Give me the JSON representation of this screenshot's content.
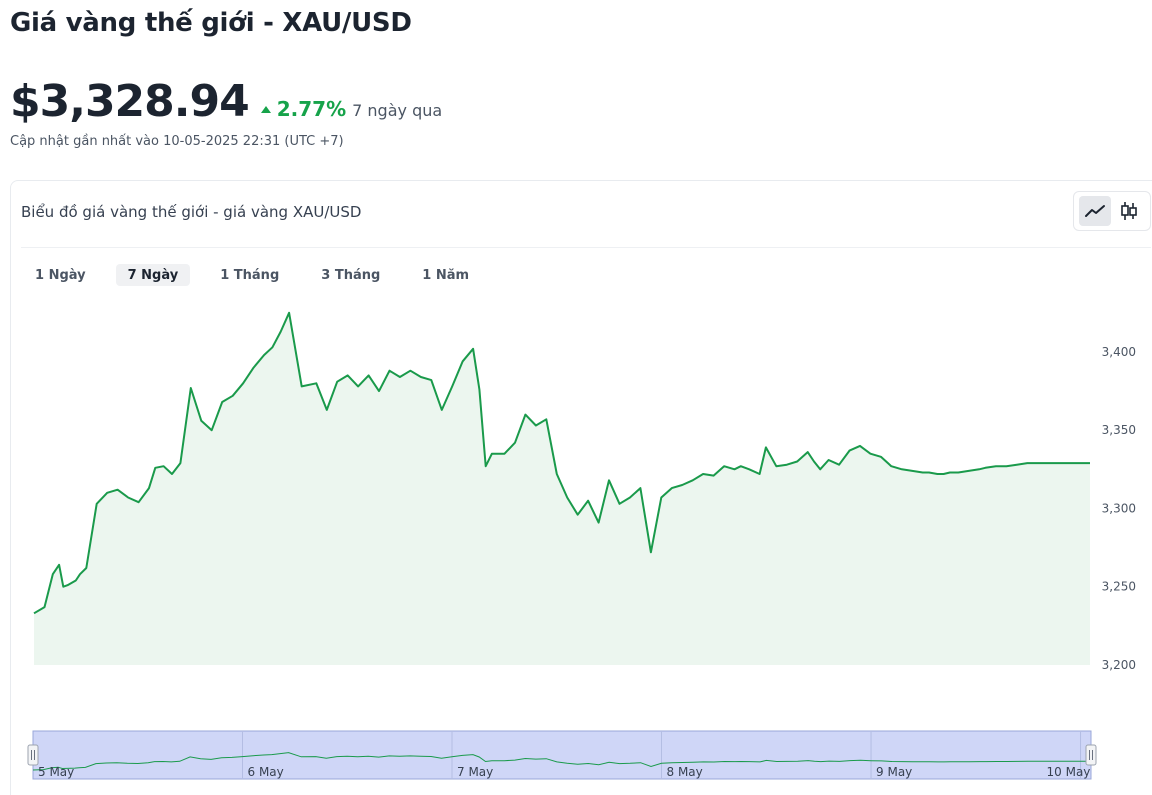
{
  "header": {
    "title": "Giá vàng thế giới - XAU/USD",
    "price": "$3,328.94",
    "change_pct": "2.77%",
    "change_period": "7 ngày qua",
    "updated": "Cập nhật gần nhất vào 10-05-2025 22:31 (UTC +7)"
  },
  "card": {
    "title": "Biểu đồ giá vàng thế giới - giá vàng XAU/USD",
    "chart_type_options": [
      "line-chart-icon",
      "candlestick-icon"
    ],
    "active_chart_type": "line-chart-icon",
    "range_tabs": [
      {
        "label": "1 Ngày",
        "active": false
      },
      {
        "label": "7 Ngày",
        "active": true
      },
      {
        "label": "1 Tháng",
        "active": false
      },
      {
        "label": "3 Tháng",
        "active": false
      },
      {
        "label": "1 Năm",
        "active": false
      }
    ]
  },
  "colors": {
    "line": "#1a9a4b",
    "area": "#ecf6ef",
    "up": "#16a34a",
    "navigator_fill": "#cfd6f7",
    "navigator_border": "#9aa7d8"
  },
  "chart_data": {
    "type": "line",
    "ylim": [
      3200,
      3430
    ],
    "yticks": [
      3200,
      3250,
      3300,
      3350,
      3400
    ],
    "ytick_labels": [
      "3,200",
      "3,250",
      "3,300",
      "3,350",
      "3,400"
    ],
    "xlim": [
      0,
      5.05
    ],
    "x_unit": "days",
    "navigator_ticks": [
      {
        "x": 0,
        "label": "5 May"
      },
      {
        "x": 1,
        "label": "6 May"
      },
      {
        "x": 2,
        "label": "7 May"
      },
      {
        "x": 3,
        "label": "8 May"
      },
      {
        "x": 4,
        "label": "9 May"
      },
      {
        "x": 5,
        "label": "10 May"
      }
    ],
    "series": [
      {
        "x": [
          0,
          0.05,
          0.09,
          0.12,
          0.14,
          0.16,
          0.2,
          0.22,
          0.25,
          0.3,
          0.35,
          0.4,
          0.45,
          0.5,
          0.55,
          0.58,
          0.62,
          0.66,
          0.7,
          0.75,
          0.8,
          0.85,
          0.9,
          0.95,
          1.0,
          1.05,
          1.1,
          1.14,
          1.18,
          1.22,
          1.28,
          1.35,
          1.4,
          1.45,
          1.5,
          1.55,
          1.6,
          1.65,
          1.7,
          1.75,
          1.8,
          1.85,
          1.9,
          1.95,
          2.0,
          2.05,
          2.1,
          2.13,
          2.16,
          2.19,
          2.25,
          2.3,
          2.35,
          2.4,
          2.45,
          2.5,
          2.55,
          2.6,
          2.65,
          2.7,
          2.75,
          2.8,
          2.85,
          2.9,
          2.95,
          3.0,
          3.05,
          3.1,
          3.15,
          3.2,
          3.25,
          3.3,
          3.35,
          3.38,
          3.42,
          3.47,
          3.5,
          3.55,
          3.6,
          3.65,
          3.7,
          3.73,
          3.76,
          3.8,
          3.85,
          3.9,
          3.95,
          4.0,
          4.05,
          4.1,
          4.15,
          4.2,
          4.25,
          4.28,
          4.32,
          4.35,
          4.38,
          4.42,
          4.47,
          4.52,
          4.55,
          4.6,
          4.65,
          4.7,
          4.75,
          4.8,
          4.85,
          4.9,
          4.95,
          5.0,
          5.05
        ],
        "y": [
          3233,
          3237,
          3258,
          3264,
          3250,
          3251,
          3254,
          3258,
          3262,
          3303,
          3310,
          3312,
          3307,
          3304,
          3313,
          3326,
          3327,
          3322,
          3329,
          3377,
          3356,
          3350,
          3368,
          3372,
          3380,
          3390,
          3398,
          3403,
          3413,
          3425,
          3378,
          3380,
          3363,
          3381,
          3385,
          3378,
          3385,
          3375,
          3388,
          3384,
          3388,
          3384,
          3382,
          3363,
          3378,
          3394,
          3402,
          3376,
          3327,
          3335,
          3335,
          3342,
          3360,
          3353,
          3357,
          3322,
          3307,
          3296,
          3305,
          3291,
          3318,
          3303,
          3307,
          3313,
          3272,
          3307,
          3313,
          3315,
          3318,
          3322,
          3321,
          3327,
          3325,
          3327,
          3325,
          3322,
          3339,
          3327,
          3328,
          3330,
          3336,
          3330,
          3325,
          3331,
          3328,
          3337,
          3340,
          3335,
          3333,
          3327,
          3325,
          3324,
          3323,
          3323,
          3322,
          3322,
          3323,
          3323,
          3324,
          3325,
          3326,
          3327,
          3327,
          3328,
          3329,
          3329,
          3329,
          3329,
          3329,
          3329,
          3329
        ]
      }
    ],
    "grid": false,
    "legend": "none"
  }
}
